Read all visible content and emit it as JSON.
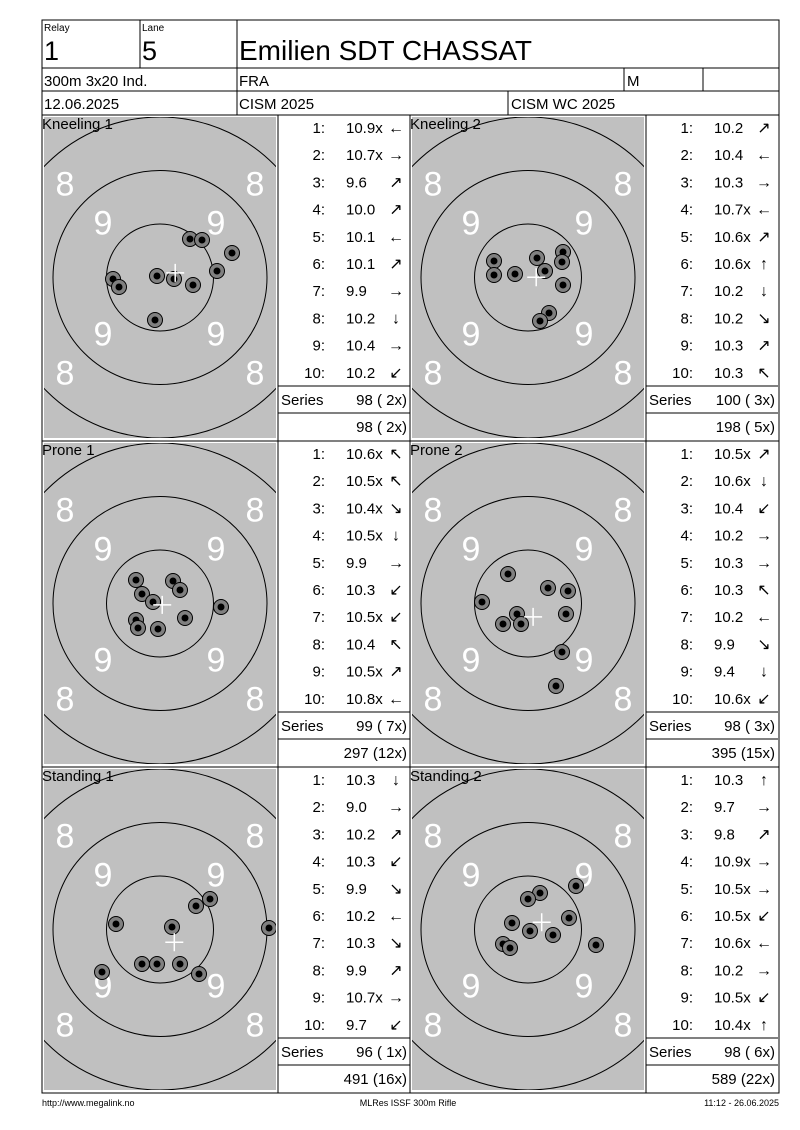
{
  "header": {
    "relay_label": "Relay",
    "relay": "1",
    "lane_label": "Lane",
    "lane": "5",
    "name": "Emilien SDT CHASSAT",
    "event": "300m 3x20 Ind.",
    "nation": "FRA",
    "gender": "M",
    "date": "12.06.2025",
    "competition": "CISM 2025",
    "match": "CISM WC 2025"
  },
  "target": {
    "outer": "8",
    "inner": "9"
  },
  "shot_labels": [
    "1:",
    "2:",
    "3:",
    "4:",
    "5:",
    "6:",
    "7:",
    "8:",
    "9:",
    "10:"
  ],
  "series_label": "Series",
  "panels": [
    {
      "title": "Kneeling 1",
      "scores": [
        "10.9x",
        "10.7x",
        "9.6",
        "10.0",
        "10.1",
        "10.1",
        "9.9",
        "10.2",
        "10.4",
        "10.2"
      ],
      "arrows": [
        "←",
        "→",
        "↗",
        "↗",
        "←",
        "↗",
        "→",
        "↓",
        "→",
        "↙"
      ],
      "series": "98 ( 2x)",
      "total": "98 ( 2x)"
    },
    {
      "title": "Kneeling 2",
      "scores": [
        "10.2",
        "10.4",
        "10.3",
        "10.7x",
        "10.6x",
        "10.6x",
        "10.2",
        "10.2",
        "10.3",
        "10.3"
      ],
      "arrows": [
        "↗",
        "←",
        "→",
        "←",
        "↗",
        "↑",
        "↓",
        "↘",
        "↗",
        "↖"
      ],
      "series": "100 ( 3x)",
      "total": "198 ( 5x)"
    },
    {
      "title": "Prone 1",
      "scores": [
        "10.6x",
        "10.5x",
        "10.4x",
        "10.5x",
        "9.9",
        "10.3",
        "10.5x",
        "10.4",
        "10.5x",
        "10.8x"
      ],
      "arrows": [
        "↖",
        "↖",
        "↘",
        "↓",
        "→",
        "↙",
        "↙",
        "↖",
        "↗",
        "←"
      ],
      "series": "99 ( 7x)",
      "total": "297 (12x)"
    },
    {
      "title": "Prone 2",
      "scores": [
        "10.5x",
        "10.6x",
        "10.4",
        "10.2",
        "10.3",
        "10.3",
        "10.2",
        "9.9",
        "9.4",
        "10.6x"
      ],
      "arrows": [
        "↗",
        "↓",
        "↙",
        "→",
        "→",
        "↖",
        "←",
        "↘",
        "↓",
        "↙"
      ],
      "series": "98 ( 3x)",
      "total": "395 (15x)"
    },
    {
      "title": "Standing 1",
      "scores": [
        "10.3",
        "9.0",
        "10.2",
        "10.3",
        "9.9",
        "10.2",
        "10.3",
        "9.9",
        "10.7x",
        "9.7"
      ],
      "arrows": [
        "↓",
        "→",
        "↗",
        "↙",
        "↘",
        "←",
        "↘",
        "↗",
        "→",
        "↙"
      ],
      "series": "96 ( 1x)",
      "total": "491 (16x)"
    },
    {
      "title": "Standing 2",
      "scores": [
        "10.3",
        "9.7",
        "9.8",
        "10.9x",
        "10.5x",
        "10.5x",
        "10.6x",
        "10.2",
        "10.5x",
        "10.4x"
      ],
      "arrows": [
        "↑",
        "→",
        "↗",
        "→",
        "→",
        "↙",
        "←",
        "→",
        "↙",
        "↑"
      ],
      "series": "98 ( 6x)",
      "total": "589 (22x)"
    }
  ],
  "footer": {
    "left": "http://www.megalink.no",
    "center": "MLRes ISSF 300m Rifle",
    "right": "11:12 - 26.06.2025"
  }
}
